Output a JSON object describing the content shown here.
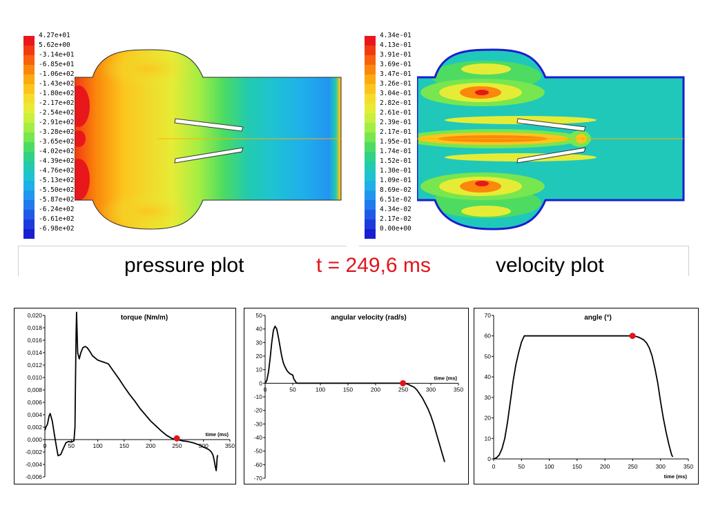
{
  "captions": {
    "pressure": "pressure plot",
    "time": "t = 249,6 ms",
    "velocity": "velocity plot"
  },
  "colors": {
    "marker": "#e0141b",
    "time_caption": "#e0141b",
    "curve": "#000000"
  },
  "pressure_legend": {
    "labels": [
      "4.27e+01",
      "5.62e+00",
      "-3.14e+01",
      "-6.85e+01",
      "-1.06e+02",
      "-1.43e+02",
      "-1.80e+02",
      "-2.17e+02",
      "-2.54e+02",
      "-2.91e+02",
      "-3.28e+02",
      "-3.65e+02",
      "-4.02e+02",
      "-4.39e+02",
      "-4.76e+02",
      "-5.13e+02",
      "-5.50e+02",
      "-5.87e+02",
      "-6.24e+02",
      "-6.61e+02",
      "-6.98e+02"
    ]
  },
  "velocity_legend": {
    "labels": [
      "4.34e-01",
      "4.13e-01",
      "3.91e-01",
      "3.69e-01",
      "3.47e-01",
      "3.26e-01",
      "3.04e-01",
      "2.82e-01",
      "2.61e-01",
      "2.39e-01",
      "2.17e-01",
      "1.95e-01",
      "1.74e-01",
      "1.52e-01",
      "1.30e-01",
      "1.09e-01",
      "8.69e-02",
      "6.51e-02",
      "4.34e-02",
      "2.17e-02",
      "0.00e+00"
    ]
  },
  "legend_colors": [
    "#e8171b",
    "#f23a12",
    "#f7620e",
    "#fb880b",
    "#fdaa10",
    "#fcc51d",
    "#f6dd2c",
    "#e6ec36",
    "#c9f03c",
    "#a4ed44",
    "#78e64e",
    "#4ddc61",
    "#2ed387",
    "#22cbae",
    "#1ec3d2",
    "#1fb0ea",
    "#2196f0",
    "#2179ee",
    "#1f5ae6",
    "#1c3bdc",
    "#1a1ed0"
  ],
  "chart_data": [
    {
      "type": "line",
      "title": "torque (Nm/m)",
      "xlabel": "time (ms)",
      "ylabel": "",
      "xlim": [
        0,
        350
      ],
      "ylim": [
        -0.006,
        0.02
      ],
      "xticks": [
        "0",
        "50",
        "100",
        "150",
        "200",
        "250",
        "300",
        "350"
      ],
      "yticks": [
        "0,020",
        "0,018",
        "0,016",
        "0,014",
        "0,012",
        "0,010",
        "0,008",
        "0,006",
        "0,004",
        "0,002",
        "0,000",
        "-0,002",
        "-0,004",
        "-0,006"
      ],
      "series": [
        {
          "x": [
            0,
            2,
            5,
            8,
            10,
            14,
            18,
            22,
            25,
            30,
            35,
            40,
            45,
            50,
            55,
            57,
            58,
            59,
            60,
            62,
            65,
            68,
            72,
            76,
            80,
            85,
            90,
            100,
            110,
            120,
            130,
            140,
            150,
            160,
            170,
            180,
            190,
            200,
            210,
            220,
            230,
            240,
            250,
            255,
            260,
            270,
            280,
            290,
            300,
            305,
            310,
            315,
            318,
            320,
            322,
            324,
            325,
            326,
            327
          ],
          "y": [
            0.0015,
            0.002,
            0.0025,
            0.0038,
            0.0042,
            0.003,
            0.0008,
            -0.0012,
            -0.0026,
            -0.0024,
            -0.0014,
            -0.0005,
            -0.0003,
            -0.0004,
            -0.0002,
            0.002,
            0.01,
            0.017,
            0.0205,
            0.014,
            0.013,
            0.014,
            0.0148,
            0.015,
            0.0148,
            0.0142,
            0.0135,
            0.0128,
            0.0125,
            0.0122,
            0.011,
            0.0098,
            0.0085,
            0.0073,
            0.0062,
            0.005,
            0.004,
            0.003,
            0.0022,
            0.0014,
            0.0007,
            0.0002,
            0.0,
            -0.0001,
            -0.0002,
            -0.0003,
            -0.0005,
            -0.0008,
            -0.0012,
            -0.0014,
            -0.0016,
            -0.002,
            -0.0025,
            -0.0032,
            -0.0042,
            -0.005,
            -0.004,
            -0.0028,
            -0.0025
          ]
        }
      ],
      "marker": {
        "x": 249.6,
        "y": 0.0002
      }
    },
    {
      "type": "line",
      "title": "angular velocity (rad/s)",
      "xlabel": "time (ms)",
      "ylabel": "",
      "xlim": [
        0,
        350
      ],
      "ylim": [
        -70,
        50
      ],
      "xticks": [
        "0",
        "50",
        "100",
        "150",
        "200",
        "250",
        "300",
        "350"
      ],
      "yticks": [
        "50",
        "40",
        "30",
        "20",
        "10",
        "0",
        "-10",
        "-20",
        "-30",
        "-40",
        "-50",
        "-60",
        "-70"
      ],
      "series": [
        {
          "x": [
            0,
            3,
            6,
            9,
            12,
            15,
            18,
            21,
            24,
            27,
            30,
            33,
            36,
            40,
            45,
            50,
            52,
            54,
            56,
            58,
            60,
            80,
            100,
            150,
            200,
            240,
            250,
            255,
            260,
            265,
            270,
            275,
            280,
            285,
            290,
            295,
            300,
            305,
            310,
            315,
            320,
            325
          ],
          "y": [
            0,
            2,
            8,
            18,
            30,
            39,
            42,
            40,
            34,
            27,
            20,
            15,
            12,
            9,
            7,
            6,
            3,
            2,
            0.5,
            0,
            0,
            0,
            0,
            0,
            0,
            0,
            0,
            -0.3,
            -1,
            -2,
            -3,
            -5,
            -8,
            -11,
            -15,
            -19,
            -24,
            -30,
            -37,
            -44,
            -51,
            -58
          ]
        }
      ],
      "marker": {
        "x": 249.6,
        "y": 0
      }
    },
    {
      "type": "line",
      "title": "angle (°)",
      "xlabel": "time (ms)",
      "ylabel": "",
      "xlim": [
        0,
        350
      ],
      "ylim": [
        0,
        70
      ],
      "xticks": [
        "0",
        "50",
        "100",
        "150",
        "200",
        "250",
        "300",
        "350"
      ],
      "yticks": [
        "70",
        "60",
        "50",
        "40",
        "30",
        "20",
        "10",
        "0"
      ],
      "series": [
        {
          "x": [
            0,
            5,
            10,
            15,
            20,
            25,
            30,
            35,
            40,
            45,
            50,
            55,
            60,
            100,
            150,
            200,
            250,
            255,
            260,
            265,
            270,
            275,
            280,
            285,
            290,
            295,
            300,
            305,
            310,
            315,
            320,
            322
          ],
          "y": [
            0,
            0.5,
            2,
            5,
            10,
            18,
            28,
            38,
            46,
            52,
            57,
            60,
            60,
            60,
            60,
            60,
            60,
            59.8,
            59.4,
            58.8,
            58,
            56.5,
            54,
            50,
            44,
            37,
            28,
            20,
            13,
            7,
            2,
            1
          ]
        }
      ],
      "marker": {
        "x": 249.6,
        "y": 60
      }
    }
  ]
}
